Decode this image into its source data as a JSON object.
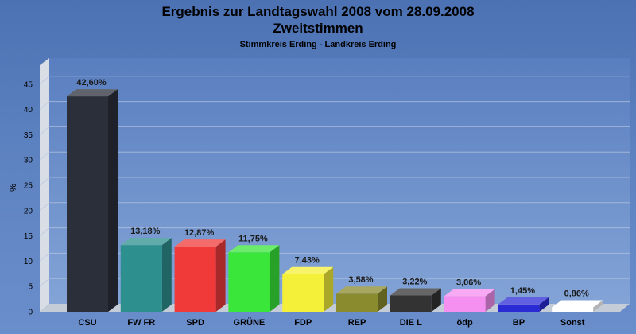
{
  "chart_data": {
    "type": "bar",
    "title": "Ergebnis zur Landtagswahl 2008 vom 28.09.2008",
    "title2": "Zweitstimmen",
    "subtitle": "Stimmkreis Erding - Landkreis Erding",
    "ylabel": "%",
    "ylim": [
      0,
      50
    ],
    "yticks": [
      0,
      5,
      10,
      15,
      20,
      25,
      30,
      35,
      40,
      45
    ],
    "grid": true,
    "categories": [
      "CSU",
      "FW FR",
      "SPD",
      "GRÜNE",
      "FDP",
      "REP",
      "DIE L",
      "ödp",
      "BP",
      "Sonst"
    ],
    "values": [
      42.6,
      13.18,
      12.87,
      11.75,
      7.43,
      3.58,
      3.22,
      3.06,
      1.45,
      0.86
    ],
    "value_labels": [
      "42,60%",
      "13,18%",
      "12,87%",
      "11,75%",
      "7,43%",
      "3,58%",
      "3,22%",
      "3,06%",
      "1,45%",
      "0,86%"
    ],
    "colors": [
      "#2b2f3a",
      "#2e8f8f",
      "#f03a3a",
      "#39e639",
      "#f4f03a",
      "#8a8a2e",
      "#333333",
      "#f58ff0",
      "#2b2bd6",
      "#ffffff"
    ]
  }
}
